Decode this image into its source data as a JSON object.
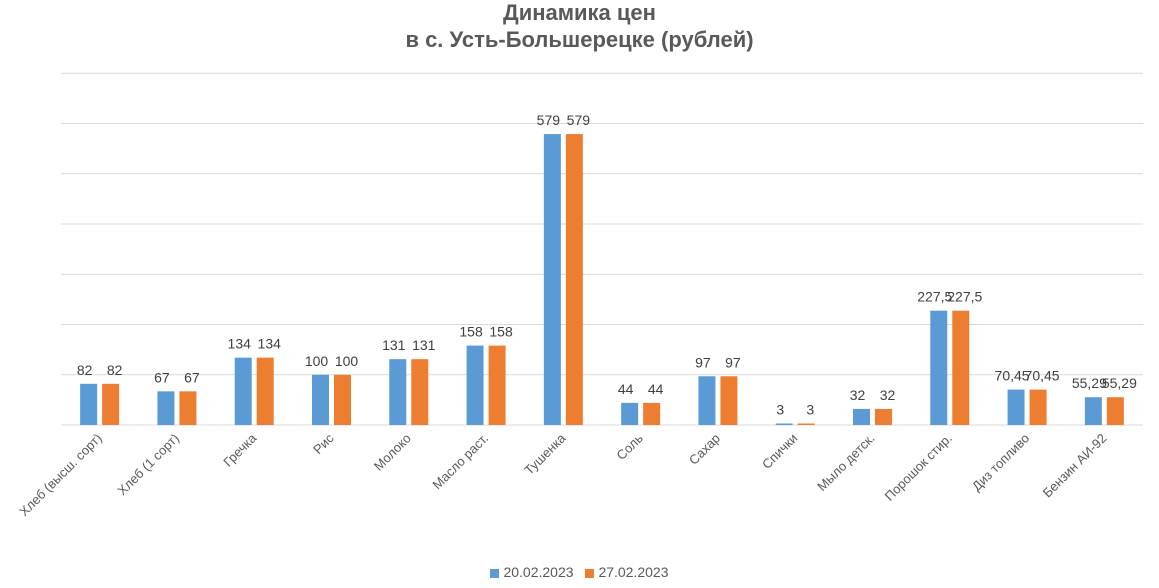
{
  "chart_data": {
    "type": "bar",
    "title_lines": [
      "Динамика цен",
      "в с. Усть-Большерецке (рублей)"
    ],
    "categories": [
      "Хлеб (высш. сорт)",
      "Хлеб (1 сорт)",
      "Гречка",
      "Рис",
      "Молоко",
      "Масло раст.",
      "Тушенка",
      "Соль",
      "Сахар",
      "Спички",
      "Мыло детск.",
      "Порошок стир.",
      "Диз топливо",
      "Бензин АИ-92"
    ],
    "series": [
      {
        "name": "20.02.2023",
        "color": "#5B9BD5",
        "values": [
          82,
          67,
          134,
          100,
          131,
          158,
          579,
          44,
          97,
          3,
          32,
          227.5,
          70.45,
          55.29
        ],
        "labels": [
          "82",
          "67",
          "134",
          "100",
          "131",
          "158",
          "579",
          "44",
          "97",
          "3",
          "32",
          "227,5",
          "70,45",
          "55,29"
        ]
      },
      {
        "name": "27.02.2023",
        "color": "#ED7D31",
        "values": [
          82,
          67,
          134,
          100,
          131,
          158,
          579,
          44,
          97,
          3,
          32,
          227.5,
          70.45,
          55.29
        ],
        "labels": [
          "82",
          "67",
          "134",
          "100",
          "131",
          "158",
          "579",
          "44",
          "97",
          "3",
          "32",
          "227,5",
          "70,45",
          "55,29"
        ]
      }
    ],
    "xlabel": "",
    "ylabel": "",
    "ylim": [
      0,
      700
    ],
    "y_gridline_step": 100,
    "y_tick_labels_shown": false,
    "grid": true,
    "legend_position": "bottom"
  }
}
